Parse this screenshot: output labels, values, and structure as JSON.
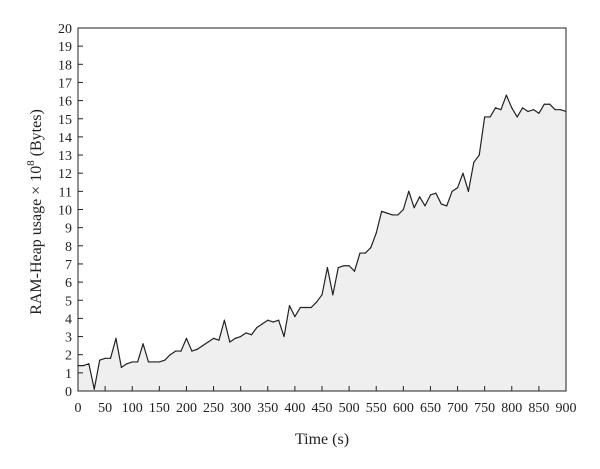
{
  "chart_data": {
    "type": "area",
    "xlabel": "Time (s)",
    "ylabel_prefix": "RAM-Heap usage × 10",
    "ylabel_exp": "8",
    "ylabel_suffix": " (Bytes)",
    "xlim": [
      0,
      900
    ],
    "ylim": [
      0,
      20
    ],
    "x_ticks": [
      0,
      50,
      100,
      150,
      200,
      250,
      300,
      350,
      400,
      450,
      500,
      550,
      600,
      650,
      700,
      750,
      800,
      850,
      900
    ],
    "y_ticks": [
      0,
      1,
      2,
      3,
      4,
      5,
      6,
      7,
      8,
      9,
      10,
      11,
      12,
      13,
      14,
      15,
      16,
      17,
      18,
      19,
      20
    ],
    "grid": false,
    "line_color": "#222222",
    "fill_color": "#efefef",
    "series": [
      {
        "x": [
          0,
          5,
          10,
          20,
          30,
          40,
          50,
          60,
          70,
          80,
          90,
          100,
          110,
          120,
          130,
          140,
          150,
          160,
          170,
          180,
          190,
          200,
          210,
          220,
          230,
          240,
          250,
          260,
          270,
          280,
          290,
          300,
          310,
          320,
          330,
          340,
          350,
          360,
          370,
          380,
          390,
          400,
          410,
          420,
          430,
          440,
          450,
          460,
          470,
          480,
          490,
          500,
          510,
          520,
          530,
          540,
          550,
          560,
          570,
          580,
          590,
          600,
          610,
          620,
          630,
          640,
          650,
          660,
          670,
          680,
          690,
          700,
          710,
          720,
          730,
          740,
          750,
          760,
          770,
          780,
          790,
          800,
          810,
          820,
          830,
          840,
          850,
          860,
          870,
          880,
          890,
          900
        ],
        "y": [
          1.4,
          1.4,
          1.4,
          1.5,
          0.1,
          1.7,
          1.8,
          1.8,
          2.9,
          1.3,
          1.5,
          1.6,
          1.6,
          2.6,
          1.6,
          1.6,
          1.6,
          1.7,
          2.0,
          2.2,
          2.2,
          2.9,
          2.2,
          2.3,
          2.5,
          2.7,
          2.9,
          2.8,
          3.9,
          2.7,
          2.9,
          3.0,
          3.2,
          3.1,
          3.5,
          3.7,
          3.9,
          3.8,
          3.9,
          3.0,
          4.7,
          4.1,
          4.6,
          4.6,
          4.6,
          4.9,
          5.3,
          6.8,
          5.3,
          6.8,
          6.9,
          6.9,
          6.6,
          7.6,
          7.6,
          7.9,
          8.7,
          9.9,
          9.8,
          9.7,
          9.7,
          10.0,
          11.0,
          10.1,
          10.7,
          10.2,
          10.8,
          10.9,
          10.3,
          10.2,
          11.0,
          11.2,
          12.0,
          11.0,
          12.6,
          13.0,
          15.1,
          15.1,
          15.6,
          15.5,
          16.3,
          15.6,
          15.1,
          15.6,
          15.4,
          15.5,
          15.3,
          15.8,
          15.8,
          15.5,
          15.5,
          15.4
        ]
      }
    ]
  }
}
